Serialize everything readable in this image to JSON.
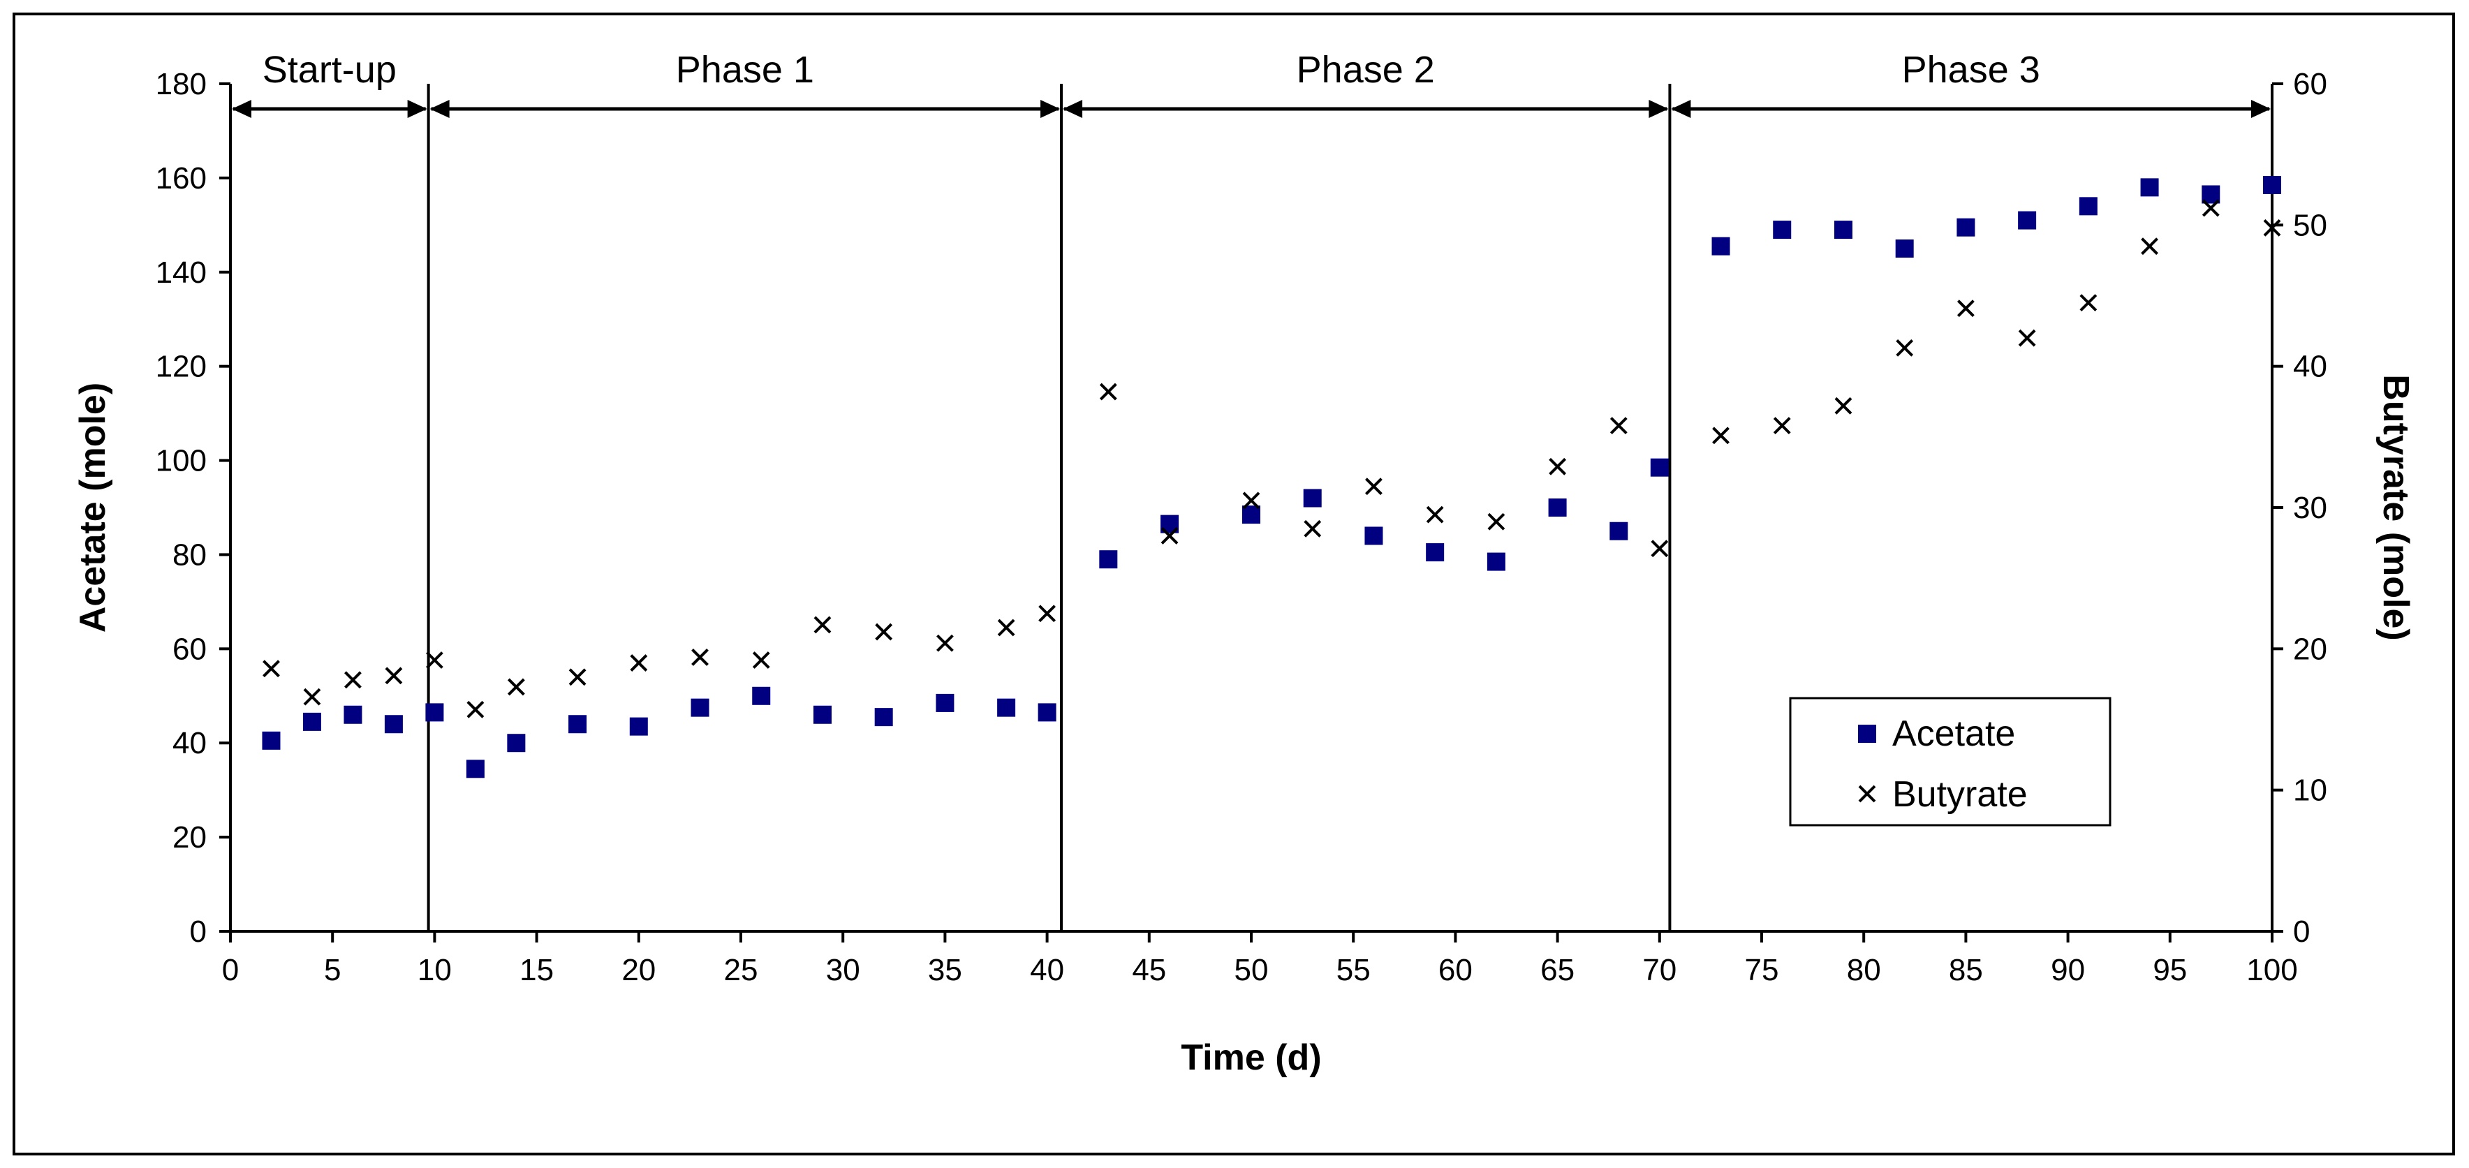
{
  "chart_data": {
    "type": "scatter",
    "xlabel": "Time (d)",
    "ylabel_left": "Acetate (mole)",
    "ylabel_right": "Butyrate (mole)",
    "xlim": [
      0,
      100
    ],
    "ylim_left": [
      0,
      180
    ],
    "ylim_right": [
      0,
      60
    ],
    "x_ticks": [
      0,
      5,
      10,
      15,
      20,
      25,
      30,
      35,
      40,
      45,
      50,
      55,
      60,
      65,
      70,
      75,
      80,
      85,
      90,
      95,
      100
    ],
    "y_left_ticks": [
      0,
      20,
      40,
      60,
      80,
      100,
      120,
      140,
      160,
      180
    ],
    "y_right_ticks": [
      0,
      10,
      20,
      30,
      40,
      50,
      60
    ],
    "grid": false,
    "legend_position": "lower-right",
    "phases": [
      {
        "label": "Start-up",
        "start": 0,
        "end": 9.7
      },
      {
        "label": "Phase 1",
        "start": 9.7,
        "end": 40.7
      },
      {
        "label": "Phase 2",
        "start": 40.7,
        "end": 70.5
      },
      {
        "label": "Phase 3",
        "start": 70.5,
        "end": 100
      }
    ],
    "series": [
      {
        "name": "Acetate",
        "axis": "left",
        "marker": "square",
        "color": "#000080",
        "x": [
          2,
          4,
          6,
          8,
          10,
          12,
          14,
          17,
          20,
          23,
          26,
          29,
          32,
          35,
          38,
          40,
          43,
          46,
          50,
          53,
          56,
          59,
          62,
          65,
          68,
          70,
          73,
          76,
          79,
          82,
          85,
          88,
          91,
          94,
          97,
          100
        ],
        "values": [
          40.5,
          44.5,
          46,
          44,
          46.5,
          34.5,
          40,
          44,
          43.5,
          47.5,
          50,
          46,
          45.5,
          48.5,
          47.5,
          46.5,
          79,
          86.5,
          88.5,
          92,
          84,
          80.5,
          78.5,
          90,
          85,
          98.5,
          145.5,
          149,
          149,
          145,
          149.5,
          151,
          154,
          158,
          156.5,
          158.5
        ]
      },
      {
        "name": "Butyrate",
        "axis": "right",
        "marker": "x",
        "color": "#000000",
        "x": [
          2,
          4,
          6,
          8,
          10,
          12,
          14,
          17,
          20,
          23,
          26,
          29,
          32,
          35,
          38,
          40,
          43,
          46,
          50,
          53,
          56,
          59,
          62,
          65,
          68,
          70,
          73,
          76,
          79,
          82,
          85,
          88,
          91,
          94,
          97,
          100
        ],
        "values": [
          18.6,
          16.6,
          17.8,
          18.1,
          19.2,
          15.7,
          17.3,
          18,
          19,
          19.4,
          19.2,
          21.7,
          21.2,
          20.4,
          21.5,
          22.5,
          38.2,
          28,
          30.5,
          28.5,
          31.5,
          29.5,
          29,
          32.9,
          35.8,
          27.1,
          35.1,
          35.8,
          37.2,
          41.3,
          44.1,
          42,
          44.5,
          48.5,
          51.2,
          49.8
        ]
      }
    ]
  }
}
